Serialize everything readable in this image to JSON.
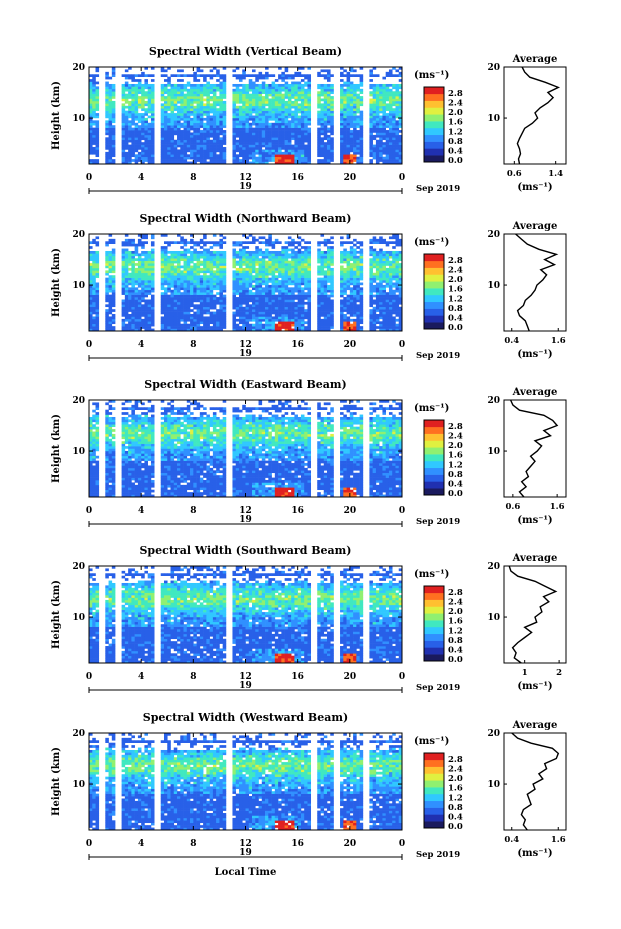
{
  "figure": {
    "xlabel": "Local Time",
    "date_label": "Sep 2019",
    "height_label": "Height (km)",
    "unit_label": "(ms⁻¹)",
    "avg_title": "Average",
    "colorbar_ticks": [
      "2.8",
      "2.4",
      "2.0",
      "1.6",
      "1.2",
      "0.8",
      "0.4",
      "0.0"
    ],
    "colorbar_colors": [
      "#1a1a5e",
      "#2030b0",
      "#2860e8",
      "#3090ff",
      "#30c8ff",
      "#40e8c0",
      "#90f070",
      "#e0f040",
      "#ffc030",
      "#ff7020",
      "#e02020"
    ],
    "day_label": "19",
    "time_ticks": [
      "0",
      "4",
      "8",
      "12",
      "16",
      "20",
      "0"
    ],
    "height_ticks": [
      "20",
      "10"
    ]
  },
  "chart_data": [
    {
      "type": "heatmap",
      "title": "Spectral Width (Vertical Beam)",
      "xlabel": "",
      "ylabel": "Height (km)",
      "xlim": [
        0,
        24
      ],
      "ylim": [
        1,
        20
      ],
      "avg_profile": {
        "title": "Average",
        "xlabel": "(ms⁻¹)",
        "xticks": [
          "0.6",
          "1.4"
        ],
        "xlim": [
          0.4,
          1.6
        ],
        "height": [
          1,
          2,
          3,
          4,
          5,
          6,
          7,
          8,
          9,
          10,
          11,
          12,
          13,
          14,
          15,
          16,
          17,
          18,
          19,
          20
        ],
        "values": [
          0.7,
          0.68,
          0.72,
          0.7,
          0.66,
          0.7,
          0.75,
          0.8,
          0.95,
          1.05,
          1.0,
          1.1,
          1.25,
          1.35,
          1.25,
          1.45,
          1.2,
          0.9,
          0.8,
          0.75
        ]
      }
    },
    {
      "type": "heatmap",
      "title": "Spectral Width (Northward Beam)",
      "xlabel": "",
      "ylabel": "Height (km)",
      "xlim": [
        0,
        24
      ],
      "ylim": [
        1,
        20
      ],
      "avg_profile": {
        "title": "Average",
        "xlabel": "(ms⁻¹)",
        "xticks": [
          "0.4",
          "1.6"
        ],
        "xlim": [
          0.2,
          1.8
        ],
        "height": [
          1,
          2,
          3,
          4,
          5,
          6,
          7,
          8,
          9,
          10,
          11,
          12,
          13,
          14,
          15,
          16,
          17,
          18,
          19,
          20
        ],
        "values": [
          0.85,
          0.8,
          0.75,
          0.6,
          0.55,
          0.7,
          0.75,
          0.9,
          1.0,
          1.05,
          1.2,
          1.3,
          1.15,
          1.5,
          1.25,
          1.55,
          1.1,
          0.8,
          0.65,
          0.5
        ]
      }
    },
    {
      "type": "heatmap",
      "title": "Spectral Width (Eastward Beam)",
      "xlabel": "",
      "ylabel": "Height (km)",
      "xlim": [
        0,
        24
      ],
      "ylim": [
        1,
        20
      ],
      "avg_profile": {
        "title": "Average",
        "xlabel": "(ms⁻¹)",
        "xticks": [
          "0.6",
          "1.6"
        ],
        "xlim": [
          0.4,
          1.8
        ],
        "height": [
          1,
          2,
          3,
          4,
          5,
          6,
          7,
          8,
          9,
          10,
          11,
          12,
          13,
          14,
          15,
          16,
          17,
          18,
          19,
          20
        ],
        "values": [
          0.85,
          0.75,
          0.9,
          0.8,
          0.95,
          0.9,
          1.0,
          1.1,
          1.0,
          1.15,
          1.25,
          1.1,
          1.45,
          1.3,
          1.6,
          1.5,
          1.3,
          0.75,
          0.6,
          0.55
        ]
      }
    },
    {
      "type": "heatmap",
      "title": "Spectral Width (Southward Beam)",
      "xlabel": "",
      "ylabel": "Height (km)",
      "xlim": [
        0,
        24
      ],
      "ylim": [
        1,
        20
      ],
      "avg_profile": {
        "title": "Average",
        "xlabel": "(ms⁻¹)",
        "xticks": [
          "1",
          "2"
        ],
        "xlim": [
          0.4,
          2.2
        ],
        "height": [
          1,
          2,
          3,
          4,
          5,
          6,
          7,
          8,
          9,
          10,
          11,
          12,
          13,
          14,
          15,
          16,
          17,
          18,
          19,
          20
        ],
        "values": [
          0.9,
          0.7,
          0.75,
          0.65,
          0.8,
          1.0,
          1.2,
          1.0,
          1.35,
          1.3,
          1.5,
          1.45,
          1.7,
          1.55,
          1.9,
          1.6,
          1.3,
          0.8,
          0.6,
          0.55
        ]
      }
    },
    {
      "type": "heatmap",
      "title": "Spectral Width (Westward Beam)",
      "xlabel": "Local Time",
      "ylabel": "Height (km)",
      "xlim": [
        0,
        24
      ],
      "ylim": [
        1,
        20
      ],
      "avg_profile": {
        "title": "Average",
        "xlabel": "(ms⁻¹)",
        "xticks": [
          "0.4",
          "1.6"
        ],
        "xlim": [
          0.2,
          1.8
        ],
        "height": [
          1,
          2,
          3,
          4,
          5,
          6,
          7,
          8,
          9,
          10,
          11,
          12,
          13,
          14,
          15,
          16,
          17,
          18,
          19,
          20
        ],
        "values": [
          0.8,
          0.7,
          0.75,
          0.65,
          0.7,
          0.9,
          0.85,
          0.8,
          1.0,
          0.95,
          1.2,
          1.1,
          1.3,
          1.25,
          1.55,
          1.6,
          1.45,
          0.9,
          0.55,
          0.4
        ]
      }
    }
  ]
}
